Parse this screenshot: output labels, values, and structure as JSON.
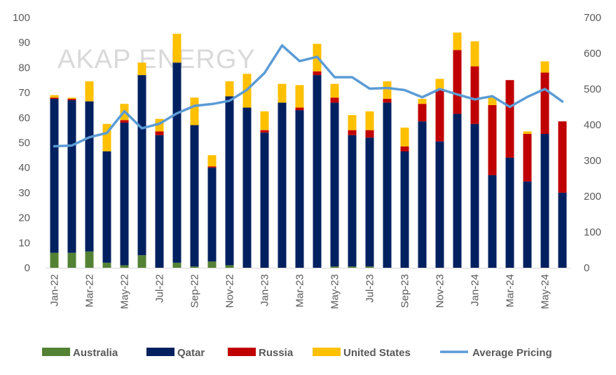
{
  "chart_data": {
    "type": "bar",
    "stacked": true,
    "watermark": "AKAP ENERGY",
    "title": "",
    "xlabel": "",
    "ylabel": "",
    "y2label": "",
    "ylim": [
      0,
      100
    ],
    "y2lim": [
      0,
      700
    ],
    "yticks": [
      "0",
      "10",
      "20",
      "30",
      "40",
      "50",
      "60",
      "70",
      "80",
      "90",
      "100"
    ],
    "y2ticks": [
      "0",
      "100",
      "200",
      "300",
      "400",
      "500",
      "600",
      "700"
    ],
    "grid": false,
    "legend_position": "bottom",
    "categories": [
      "Jan-22",
      "Feb-22",
      "Mar-22",
      "Apr-22",
      "May-22",
      "Jun-22",
      "Jul-22",
      "Aug-22",
      "Sep-22",
      "Oct-22",
      "Nov-22",
      "Dec-22",
      "Jan-23",
      "Feb-23",
      "Mar-23",
      "Apr-23",
      "May-23",
      "Jun-23",
      "Jul-23",
      "Aug-23",
      "Sep-23",
      "Oct-23",
      "Nov-23",
      "Dec-23",
      "Jan-24",
      "Feb-24",
      "Mar-24",
      "Apr-24",
      "May-24",
      "Jun-24"
    ],
    "tick_labels": [
      "Jan-22",
      "Mar-22",
      "May-22",
      "Jul-22",
      "Sep-22",
      "Nov-22",
      "Jan-23",
      "Mar-23",
      "May-23",
      "Jul-23",
      "Sep-23",
      "Nov-23",
      "Jan-24",
      "Mar-24",
      "May-24"
    ],
    "series": [
      {
        "name": "Australia",
        "type": "bar",
        "color": "#548235",
        "values": [
          6,
          6,
          6.5,
          2,
          1,
          5,
          0,
          2,
          0.5,
          2.5,
          1,
          0,
          0,
          0,
          0,
          0,
          0.5,
          0.5,
          0.5,
          0,
          0,
          0,
          0,
          0,
          0,
          0,
          0,
          0,
          0,
          0
        ]
      },
      {
        "name": "Qatar",
        "type": "bar",
        "color": "#002060",
        "values": [
          61.5,
          61,
          60,
          44.5,
          57,
          72,
          53,
          80,
          56.5,
          37.5,
          67.5,
          64,
          54,
          66,
          63,
          77,
          65.5,
          52.5,
          51.5,
          66,
          46.5,
          58.5,
          50.5,
          61.5,
          57.5,
          37,
          44,
          34.5,
          53.5,
          30
        ]
      },
      {
        "name": "Russia",
        "type": "bar",
        "color": "#c00000",
        "values": [
          0.5,
          0.5,
          0,
          0,
          1,
          0,
          1.5,
          0,
          0,
          0.5,
          0,
          0,
          1,
          0,
          1,
          1.5,
          2,
          2,
          3,
          1.5,
          2,
          7,
          20.5,
          25.5,
          23,
          28,
          31,
          19,
          24.5,
          28.5
        ]
      },
      {
        "name": "United States",
        "type": "bar",
        "color": "#ffc000",
        "values": [
          1,
          0.5,
          8,
          11,
          6.5,
          5,
          5,
          11.5,
          11,
          4.5,
          6,
          13.5,
          7.5,
          7.5,
          9,
          11,
          5.5,
          6,
          7.5,
          7,
          7.5,
          2,
          4.5,
          7,
          10,
          3,
          0,
          1,
          4.5,
          0
        ]
      },
      {
        "name": "Average Pricing",
        "type": "line",
        "axis": "right",
        "color": "#5b9bd5",
        "values": [
          340,
          342,
          365,
          377,
          438,
          390,
          403,
          432,
          453,
          458,
          467,
          498,
          545,
          622,
          578,
          590,
          533,
          533,
          501,
          503,
          497,
          477,
          500,
          485,
          471,
          480,
          450,
          478,
          500,
          465
        ]
      }
    ]
  }
}
